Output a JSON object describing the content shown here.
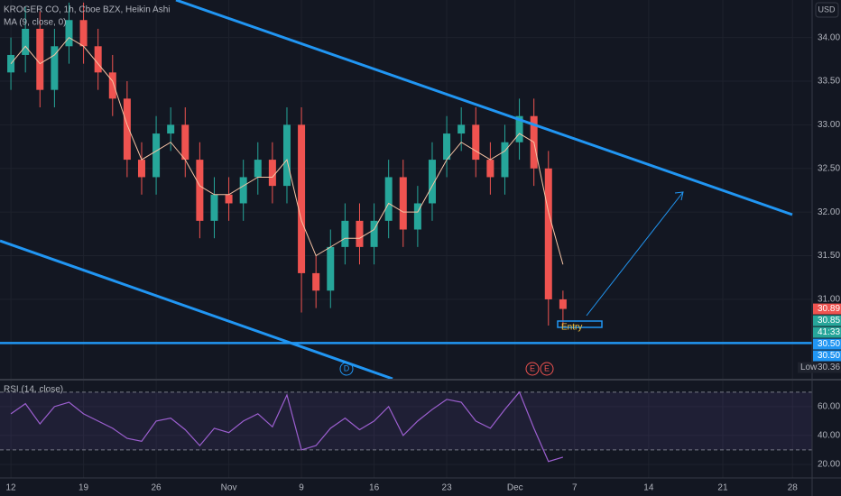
{
  "chart_data": [
    {
      "type": "candlestick",
      "title": "KROGER CO, 1h, Cboe BZX, Heikin Ashi",
      "axis_label": "USD",
      "x": [
        0,
        1,
        2,
        3,
        4,
        5,
        6,
        7,
        8,
        9,
        10,
        11,
        12,
        13,
        14,
        15,
        16,
        17,
        18,
        19,
        20,
        21,
        22,
        23,
        24,
        25,
        26,
        27,
        28,
        29,
        30,
        31,
        32,
        33,
        34,
        35,
        36,
        37,
        38
      ],
      "open": [
        33.6,
        33.8,
        34.1,
        33.4,
        33.9,
        34.2,
        33.9,
        33.6,
        33.3,
        32.6,
        32.4,
        32.9,
        33.0,
        32.6,
        31.9,
        32.2,
        32.1,
        32.4,
        32.6,
        32.3,
        33.0,
        31.3,
        31.1,
        31.6,
        31.9,
        31.6,
        31.9,
        32.4,
        31.8,
        32.1,
        32.6,
        32.9,
        33.0,
        32.6,
        32.4,
        32.8,
        33.1,
        32.5,
        31.0
      ],
      "high": [
        34.0,
        34.35,
        34.3,
        34.1,
        34.4,
        34.4,
        34.1,
        33.8,
        33.5,
        32.8,
        33.1,
        33.2,
        33.2,
        32.8,
        32.4,
        32.4,
        32.6,
        32.8,
        32.8,
        33.2,
        33.2,
        31.5,
        31.8,
        32.1,
        32.1,
        32.1,
        32.6,
        32.6,
        32.3,
        32.8,
        33.1,
        33.2,
        33.2,
        32.8,
        33.0,
        33.3,
        33.3,
        32.7,
        31.1
      ],
      "low": [
        33.4,
        33.6,
        33.2,
        33.2,
        33.7,
        33.7,
        33.4,
        33.1,
        32.4,
        32.2,
        32.2,
        32.7,
        32.4,
        31.7,
        31.7,
        31.9,
        31.9,
        32.2,
        32.1,
        32.1,
        30.85,
        30.9,
        30.9,
        31.4,
        31.4,
        31.4,
        31.7,
        31.6,
        31.6,
        31.9,
        32.4,
        32.7,
        32.4,
        32.2,
        32.2,
        32.6,
        32.3,
        30.7,
        30.7
      ],
      "close": [
        33.8,
        34.1,
        33.4,
        33.9,
        34.2,
        33.9,
        33.6,
        33.3,
        32.6,
        32.4,
        32.9,
        33.0,
        32.6,
        31.9,
        32.2,
        32.1,
        32.4,
        32.6,
        32.3,
        33.0,
        31.3,
        31.1,
        31.6,
        31.9,
        31.6,
        31.9,
        32.4,
        31.8,
        32.1,
        32.6,
        32.9,
        33.0,
        32.6,
        32.4,
        32.8,
        33.1,
        32.5,
        31.0,
        30.89
      ],
      "up_color": "#26a69a",
      "down_color": "#ef5350",
      "ma": {
        "name": "MA (9, close, 0)",
        "color": "#f7c4a5",
        "values": [
          33.7,
          33.9,
          33.7,
          33.8,
          34.0,
          33.9,
          33.7,
          33.5,
          33.0,
          32.6,
          32.7,
          32.8,
          32.6,
          32.3,
          32.2,
          32.2,
          32.3,
          32.4,
          32.4,
          32.6,
          31.9,
          31.5,
          31.6,
          31.7,
          31.7,
          31.8,
          32.1,
          32.0,
          32.0,
          32.3,
          32.6,
          32.8,
          32.7,
          32.6,
          32.7,
          32.9,
          32.8,
          32.0,
          31.4
        ]
      },
      "xlim": [
        -0.75,
        55.15
      ],
      "xticks": [
        {
          "value": 0,
          "label": "12"
        },
        {
          "value": 5,
          "label": "19"
        },
        {
          "value": 10,
          "label": "26"
        },
        {
          "value": 15,
          "label": "Nov"
        },
        {
          "value": 20,
          "label": "9"
        },
        {
          "value": 25,
          "label": "16"
        },
        {
          "value": 30,
          "label": "23"
        },
        {
          "value": 34.7,
          "label": "Dec"
        },
        {
          "value": 38.8,
          "label": "7"
        },
        {
          "value": 43.9,
          "label": "14"
        },
        {
          "value": 49,
          "label": "21"
        },
        {
          "value": 53.8,
          "label": "28"
        }
      ],
      "ylim": [
        30.09,
        34.43
      ],
      "yticks": [
        {
          "value": 31,
          "label": "31.00"
        },
        {
          "value": 31.5,
          "label": "31.50"
        },
        {
          "value": 32,
          "label": "32.00"
        },
        {
          "value": 32.5,
          "label": "32.50"
        },
        {
          "value": 33,
          "label": "33.00"
        },
        {
          "value": 33.5,
          "label": "33.50"
        },
        {
          "value": 34,
          "label": "34.00"
        }
      ],
      "hline": 30.5,
      "price_labels": [
        {
          "value": 30.89,
          "label": "30.89",
          "color": "#ef5350"
        },
        {
          "value": 30.85,
          "label": "30.85",
          "color": "#26a69a"
        },
        {
          "value": 30.85,
          "label": "41:33",
          "color": "#26a69a"
        },
        {
          "value": 30.5,
          "label": "30.50",
          "color": "#2196f3"
        },
        {
          "value": 30.5,
          "label": "30.50",
          "color": "#2196f3"
        }
      ],
      "low_label": {
        "name": "Low",
        "value": 30.36,
        "label": "30.36"
      },
      "annotations": {
        "entry": "Entry",
        "events": [
          "D",
          "E",
          "E"
        ]
      }
    },
    {
      "type": "line",
      "title": "RSI (14, close)",
      "color": "#9c5fd0",
      "x": [
        0,
        1,
        2,
        3,
        4,
        5,
        6,
        7,
        8,
        9,
        10,
        11,
        12,
        13,
        14,
        15,
        16,
        17,
        18,
        19,
        20,
        21,
        22,
        23,
        24,
        25,
        26,
        27,
        28,
        29,
        30,
        31,
        32,
        33,
        34,
        35,
        36,
        37,
        38
      ],
      "values": [
        55,
        62,
        48,
        60,
        63,
        55,
        50,
        45,
        38,
        36,
        50,
        52,
        44,
        33,
        45,
        42,
        50,
        55,
        46,
        68,
        30,
        33,
        45,
        52,
        44,
        50,
        60,
        40,
        50,
        58,
        65,
        63,
        50,
        45,
        58,
        70,
        45,
        22,
        25
      ],
      "bands": [
        30,
        70
      ],
      "ylim": [
        10.6,
        78
      ],
      "yticks": [
        {
          "value": 20,
          "label": "20.00"
        },
        {
          "value": 40,
          "label": "40.00"
        },
        {
          "value": 60,
          "label": "60.00"
        }
      ]
    }
  ]
}
